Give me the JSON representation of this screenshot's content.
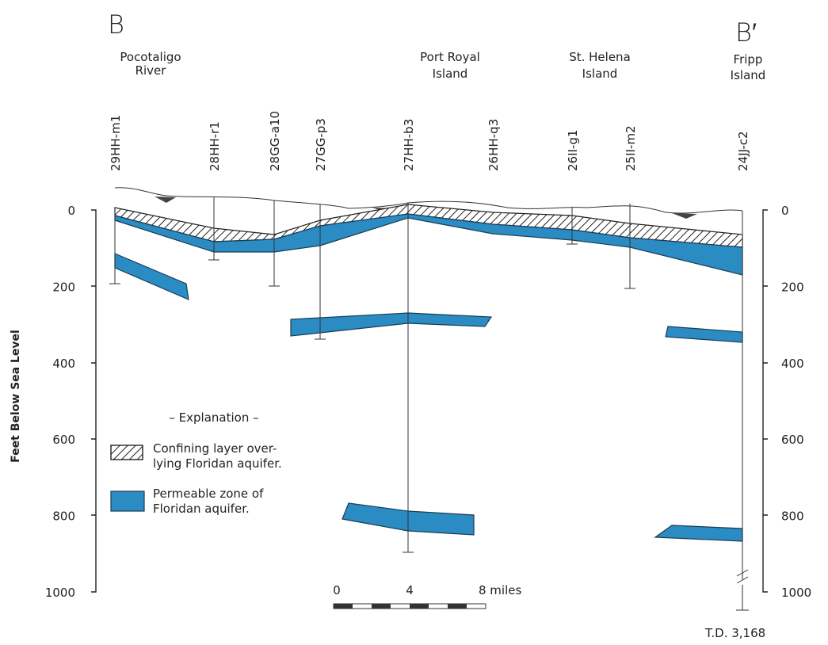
{
  "section": {
    "start": "B",
    "end": "B′"
  },
  "locations": [
    {
      "line1": "Pocotaligo",
      "line2": "River"
    },
    {
      "line1": "Port Royal",
      "line2": "Island"
    },
    {
      "line1": "St. Helena",
      "line2": "Island"
    },
    {
      "line1": "Fripp",
      "line2": "Island"
    }
  ],
  "wells": [
    "29HH-m1",
    "28HH-r1",
    "28GG-a10",
    "27GG-p3",
    "27HH-b3",
    "26HH-q3",
    "26II-g1",
    "25II-m2",
    "24JJ-c2"
  ],
  "axis": {
    "label": "Feet Below Sea Level",
    "left_ticks": [
      0,
      200,
      400,
      600,
      800,
      1000
    ],
    "right_ticks": [
      0,
      200,
      400,
      600,
      800,
      1000
    ]
  },
  "explanation": {
    "title": "– Explanation –",
    "items": [
      {
        "line1": "Confining layer over-",
        "line2": "lying Floridan aquifer."
      },
      {
        "line1": "Permeable zone of",
        "line2": "Floridan aquifer."
      }
    ]
  },
  "scale": {
    "labels": [
      "0",
      "4",
      "8 miles"
    ]
  },
  "total_depth": "T.D. 3,168"
}
